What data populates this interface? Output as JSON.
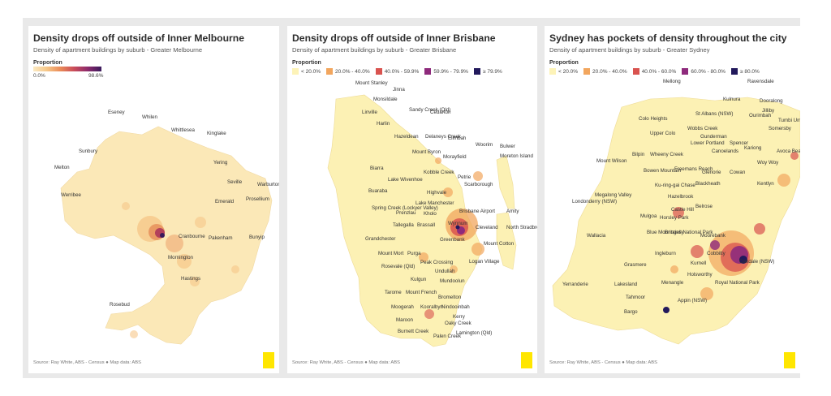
{
  "panels": [
    {
      "title": "Density drops off outside of Inner Melbourne",
      "subtitle": "Density of apartment buildings by suburb - Greater Melbourne",
      "legend_title": "Proportion",
      "legend_min": "0.0%",
      "legend_max": "98.6%",
      "labels": [
        "Eseney",
        "Whilen",
        "Whittlesea",
        "Kinglake",
        "Sunbury",
        "Melton",
        "Yering",
        "Seville",
        "Warburton",
        "Werribee",
        "Emerald",
        "Prosellium",
        "Cranbourne",
        "Pakenham",
        "Bunyip",
        "Mornington",
        "Hastings",
        "Rosebud"
      ],
      "source": "Source: Ray White, ABS - Census ● Map data: ABS"
    },
    {
      "title": "Density drops off outside of Inner Brisbane",
      "subtitle": "Density of apartment buildings by suburb - Greater Brisbane",
      "legend_title": "Proportion",
      "legend": [
        {
          "label": "< 20.0%",
          "color": "#fdf3b8"
        },
        {
          "label": "20.0% - 40.0%",
          "color": "#f2a65e"
        },
        {
          "label": "40.0% - 59.9%",
          "color": "#d9534f"
        },
        {
          "label": "59.9% - 79.9%",
          "color": "#8e2a7c"
        },
        {
          "label": "≥ 79.9%",
          "color": "#22195c"
        }
      ],
      "labels": [
        "Mount Stanley",
        "Jinna",
        "Monsildale",
        "Linville",
        "Sandy Creek (Qld)",
        "Cedarton",
        "Harlin",
        "Hazeldean",
        "Delaneys Creek",
        "Elimbah",
        "Woorim",
        "Bulwer",
        "Moreton Island",
        "Mount Byron",
        "Morayfield",
        "Biarra",
        "Lake Wivenhoe",
        "Kobble Creek",
        "Petrie",
        "Scarborough",
        "Buaraba",
        "Highvale",
        "Spring Creek (Lockyer Valley)",
        "Lake Manchester",
        "Brisbane Airport",
        "Amity",
        "Prenzlau",
        "Kholo",
        "Wynnum",
        "Tallegalla",
        "Brassall",
        "Cleveland",
        "North Stradbroke Island",
        "Grandchester",
        "Greenbank",
        "Mount Cotton",
        "Mount Mort",
        "Purga",
        "Peak Crossing",
        "Logan Village",
        "Rosevale (Qld)",
        "Undullah",
        "Mundoolun",
        "Kulgun",
        "Tarome",
        "Mount French",
        "Bromelton",
        "Moogerah",
        "Kooralbyn",
        "Nindooinbah",
        "Kerry",
        "Maroon",
        "Oaky Creek",
        "Burnett Creek",
        "Palen Creek",
        "Lamington (Qld)"
      ],
      "source": "Source: Ray White, ABS - Census ● Map data: ABS"
    },
    {
      "title": "Sydney has pockets of density throughout the city",
      "subtitle": "Density of apartment buildings by suburb - Greater Sydney",
      "legend_title": "Proportion",
      "legend": [
        {
          "label": "< 20.0%",
          "color": "#fdf3b8"
        },
        {
          "label": "20.0% - 40.0%",
          "color": "#f2a65e"
        },
        {
          "label": "40.0% - 60.0%",
          "color": "#d9534f"
        },
        {
          "label": "60.0% - 80.0%",
          "color": "#8e2a7c"
        },
        {
          "label": "≥ 80.0%",
          "color": "#22195c"
        }
      ],
      "labels": [
        "Mellong",
        "Ravensdale",
        "Kulnura",
        "Dooralong",
        "Jilliby",
        "St Albans (NSW)",
        "Colo Heights",
        "Ourimbah",
        "Tumbi Umbi",
        "Wobbs Creek",
        "Upper Colo",
        "Gunderman",
        "Somersby",
        "Lower Portland",
        "Spencer",
        "Bilpin",
        "Wheeny Creek",
        "Canoelands",
        "Kariong",
        "Avoca Beach",
        "Mount Wilson",
        "Bowen Mountain",
        "Freemans Reach",
        "Glenorie",
        "Cowan",
        "Woy Woy",
        "Blackheath",
        "Kentlyn",
        "Ku-ring-gai Chase",
        "Londonderry (NSW)",
        "Megalong Valley",
        "Hazelbrook",
        "Castle Hill",
        "Belrose",
        "Mulgoa",
        "Horsley Park",
        "Wallacia",
        "Blue Mountains National Park",
        "Bringelly",
        "Moorebank",
        "Cobbitty",
        "Ingleburn",
        "Kurnell",
        "Oakdale (NSW)",
        "Grasmere",
        "Holsworthy",
        "Yerranderie",
        "Lakesland",
        "Menangle",
        "Royal National Park",
        "Tahmoor",
        "Appin (NSW)",
        "Bargo"
      ],
      "source": "Source: Ray White, ABS - Census ● Map data: ABS"
    }
  ]
}
